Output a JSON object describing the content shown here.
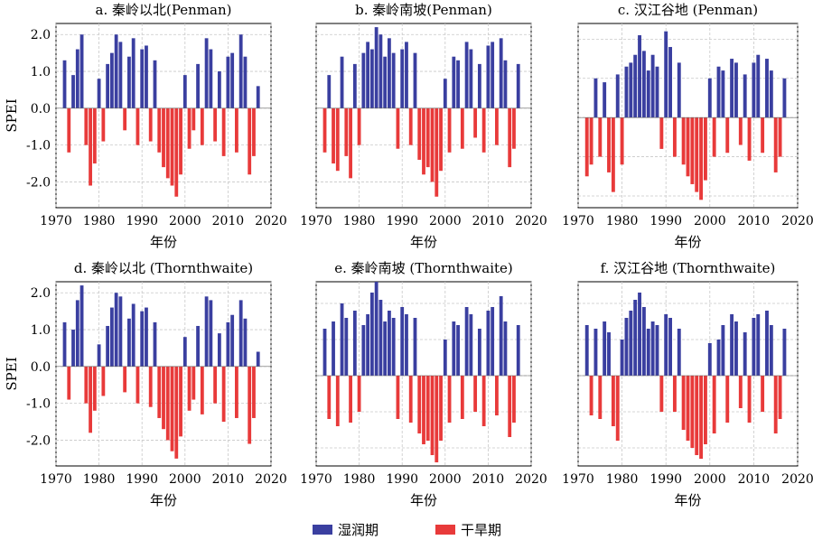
{
  "chart_data": [
    {
      "type": "bar",
      "title": "a. 秦岭以北(Penman)",
      "xlabel": "年份",
      "ylabel": "SPEI",
      "xticks": [
        "1970",
        "1980",
        "1990",
        "2000",
        "2010",
        "2020"
      ],
      "yticks": [
        "2.0",
        "1.0",
        "0.0",
        "-1.0",
        "-2.0"
      ],
      "xlim": [
        1970,
        2020
      ],
      "ylim": [
        -2.7,
        2.3
      ],
      "x": [
        1972,
        1973,
        1974,
        1975,
        1976,
        1977,
        1978,
        1979,
        1980,
        1981,
        1982,
        1983,
        1984,
        1985,
        1986,
        1987,
        1988,
        1989,
        1990,
        1991,
        1992,
        1993,
        1994,
        1995,
        1996,
        1997,
        1998,
        1999,
        2000,
        2001,
        2002,
        2003,
        2004,
        2005,
        2006,
        2007,
        2008,
        2009,
        2010,
        2011,
        2012,
        2013,
        2014,
        2015,
        2016,
        2017
      ],
      "values": [
        1.3,
        -1.2,
        0.9,
        1.6,
        2.0,
        -1.0,
        -2.1,
        -1.5,
        0.8,
        -0.9,
        1.2,
        1.5,
        2.0,
        1.8,
        -0.6,
        1.4,
        1.9,
        -1.0,
        1.6,
        1.7,
        -0.9,
        1.3,
        -1.2,
        -1.6,
        -1.9,
        -2.1,
        -2.4,
        -1.8,
        0.9,
        -1.1,
        -0.6,
        1.2,
        -1.0,
        1.9,
        1.6,
        -0.9,
        1.0,
        -1.3,
        1.4,
        1.5,
        -1.2,
        2.0,
        1.4,
        -1.8,
        -1.3,
        0.6
      ],
      "grid": true
    },
    {
      "type": "bar",
      "title": "b. 秦岭南坡(Penman)",
      "xlabel": "年份",
      "ylabel": "",
      "xticks": [
        "1970",
        "1980",
        "1990",
        "2000",
        "2010",
        "2020"
      ],
      "yticks": [],
      "xlim": [
        1970,
        2020
      ],
      "ylim": [
        -2.7,
        2.3
      ],
      "x": [
        1972,
        1973,
        1974,
        1975,
        1976,
        1977,
        1978,
        1979,
        1980,
        1981,
        1982,
        1983,
        1984,
        1985,
        1986,
        1987,
        1988,
        1989,
        1990,
        1991,
        1992,
        1993,
        1994,
        1995,
        1996,
        1997,
        1998,
        1999,
        2000,
        2001,
        2002,
        2003,
        2004,
        2005,
        2006,
        2007,
        2008,
        2009,
        2010,
        2011,
        2012,
        2013,
        2014,
        2015,
        2016,
        2017
      ],
      "values": [
        -1.2,
        0.9,
        -1.5,
        -1.7,
        1.4,
        -1.3,
        -1.9,
        1.2,
        -1.0,
        1.5,
        1.8,
        1.6,
        2.2,
        2.0,
        1.4,
        1.9,
        1.5,
        -1.1,
        1.6,
        1.8,
        -1.0,
        1.5,
        -1.4,
        -1.8,
        -1.6,
        -2.0,
        -2.4,
        -1.7,
        0.8,
        -1.2,
        1.4,
        1.3,
        -1.1,
        1.8,
        1.6,
        -0.8,
        1.2,
        -1.2,
        1.7,
        1.8,
        -1.0,
        1.9,
        1.3,
        -1.6,
        -1.1,
        1.2
      ],
      "grid": true
    },
    {
      "type": "bar",
      "title": "c. 汉江谷地 (Penman)",
      "xlabel": "年份",
      "ylabel": "",
      "xticks": [
        "1970",
        "1980",
        "1990",
        "2000",
        "2010",
        "2020"
      ],
      "yticks": [],
      "xlim": [
        1970,
        2020
      ],
      "ylim": [
        -2.3,
        2.4
      ],
      "x": [
        1972,
        1973,
        1974,
        1975,
        1976,
        1977,
        1978,
        1979,
        1980,
        1981,
        1982,
        1983,
        1984,
        1985,
        1986,
        1987,
        1988,
        1989,
        1990,
        1991,
        1992,
        1993,
        1994,
        1995,
        1996,
        1997,
        1998,
        1999,
        2000,
        2001,
        2002,
        2003,
        2004,
        2005,
        2006,
        2007,
        2008,
        2009,
        2010,
        2011,
        2012,
        2013,
        2014,
        2015,
        2016,
        2017
      ],
      "values": [
        -1.5,
        -1.2,
        1.0,
        -1.0,
        0.9,
        -1.4,
        -1.9,
        1.1,
        -1.2,
        1.3,
        1.4,
        1.6,
        2.1,
        1.7,
        1.2,
        1.6,
        1.3,
        -0.8,
        2.2,
        1.8,
        -1.0,
        1.4,
        -1.2,
        -1.5,
        -1.7,
        -1.9,
        -2.1,
        -1.6,
        1.0,
        -1.0,
        1.3,
        1.2,
        -0.9,
        1.5,
        1.4,
        -0.7,
        1.1,
        -1.1,
        1.4,
        1.6,
        -0.9,
        1.5,
        1.2,
        -1.4,
        -1.0,
        1.0
      ],
      "grid": true
    },
    {
      "type": "bar",
      "title": "d. 秦岭以北 (Thornthwaite)",
      "xlabel": "年份",
      "ylabel": "SPEI",
      "xticks": [
        "1970",
        "1980",
        "1990",
        "2000",
        "2010",
        "2020"
      ],
      "yticks": [
        "2.0",
        "1.0",
        "0.0",
        "-1.0",
        "-2.0"
      ],
      "xlim": [
        1970,
        2020
      ],
      "ylim": [
        -2.7,
        2.3
      ],
      "x": [
        1972,
        1973,
        1974,
        1975,
        1976,
        1977,
        1978,
        1979,
        1980,
        1981,
        1982,
        1983,
        1984,
        1985,
        1986,
        1987,
        1988,
        1989,
        1990,
        1991,
        1992,
        1993,
        1994,
        1995,
        1996,
        1997,
        1998,
        1999,
        2000,
        2001,
        2002,
        2003,
        2004,
        2005,
        2006,
        2007,
        2008,
        2009,
        2010,
        2011,
        2012,
        2013,
        2014,
        2015,
        2016,
        2017
      ],
      "values": [
        1.2,
        -0.9,
        1.0,
        1.8,
        2.2,
        -1.0,
        -1.8,
        -1.2,
        0.6,
        -0.8,
        1.1,
        1.6,
        2.0,
        1.9,
        -0.7,
        1.3,
        1.7,
        -1.0,
        1.5,
        1.6,
        -1.1,
        1.2,
        -1.4,
        -1.7,
        -2.0,
        -2.3,
        -2.5,
        -1.9,
        0.8,
        -1.2,
        -0.9,
        1.1,
        -1.3,
        1.9,
        1.8,
        -1.0,
        0.9,
        -1.5,
        1.2,
        1.4,
        -1.4,
        1.8,
        1.3,
        -2.1,
        -1.4,
        0.4
      ],
      "grid": true
    },
    {
      "type": "bar",
      "title": "e. 秦岭南坡 (Thornthwaite)",
      "xlabel": "年份",
      "ylabel": "",
      "xticks": [
        "1970",
        "1980",
        "1990",
        "2000",
        "2010",
        "2020"
      ],
      "yticks": [],
      "xlim": [
        1970,
        2020
      ],
      "ylim": [
        -2.5,
        2.6
      ],
      "x": [
        1972,
        1973,
        1974,
        1975,
        1976,
        1977,
        1978,
        1979,
        1980,
        1981,
        1982,
        1983,
        1984,
        1985,
        1986,
        1987,
        1988,
        1989,
        1990,
        1991,
        1992,
        1993,
        1994,
        1995,
        1996,
        1997,
        1998,
        1999,
        2000,
        2001,
        2002,
        2003,
        2004,
        2005,
        2006,
        2007,
        2008,
        2009,
        2010,
        2011,
        2012,
        2013,
        2014,
        2015,
        2016,
        2017
      ],
      "values": [
        1.3,
        -1.2,
        1.5,
        -1.4,
        2.0,
        1.6,
        -1.3,
        1.8,
        -1.0,
        1.4,
        1.7,
        2.3,
        2.6,
        2.1,
        1.5,
        1.8,
        1.6,
        -1.2,
        1.9,
        1.7,
        -1.3,
        1.6,
        -1.6,
        -1.9,
        -1.8,
        -2.2,
        -2.4,
        -1.8,
        1.0,
        -1.3,
        1.5,
        1.4,
        -1.2,
        1.9,
        1.7,
        -1.0,
        1.3,
        -1.4,
        1.8,
        1.9,
        -1.1,
        2.2,
        1.5,
        -1.7,
        -1.3,
        1.4
      ],
      "grid": true
    },
    {
      "type": "bar",
      "title": "f. 汉江谷地 (Thornthwaite)",
      "xlabel": "年份",
      "ylabel": "",
      "xticks": [
        "1970",
        "1980",
        "1990",
        "2000",
        "2010",
        "2020"
      ],
      "yticks": [],
      "xlim": [
        1970,
        2020
      ],
      "ylim": [
        -2.5,
        2.6
      ],
      "x": [
        1972,
        1973,
        1974,
        1975,
        1976,
        1977,
        1978,
        1979,
        1980,
        1981,
        1982,
        1983,
        1984,
        1985,
        1986,
        1987,
        1988,
        1989,
        1990,
        1991,
        1992,
        1993,
        1994,
        1995,
        1996,
        1997,
        1998,
        1999,
        2000,
        2001,
        2002,
        2003,
        2004,
        2005,
        2006,
        2007,
        2008,
        2009,
        2010,
        2011,
        2012,
        2013,
        2014,
        2015,
        2016,
        2017
      ],
      "values": [
        1.4,
        -1.1,
        1.3,
        -1.2,
        1.5,
        1.2,
        -1.4,
        -1.8,
        1.0,
        1.6,
        1.8,
        2.1,
        2.3,
        1.9,
        1.3,
        1.5,
        1.4,
        -1.0,
        1.7,
        1.6,
        -1.0,
        1.3,
        -1.5,
        -1.8,
        -2.0,
        -2.2,
        -2.3,
        -1.9,
        0.9,
        -1.6,
        1.0,
        1.4,
        -1.3,
        1.7,
        1.5,
        -0.9,
        1.2,
        -1.3,
        1.6,
        1.7,
        -1.0,
        1.8,
        1.4,
        -1.6,
        -1.2,
        1.3
      ],
      "grid": true
    }
  ],
  "legend": {
    "wet_label": "湿润期",
    "dry_label": "干旱期",
    "wet_color": "#3a3fa0",
    "dry_color": "#e83a3a"
  }
}
